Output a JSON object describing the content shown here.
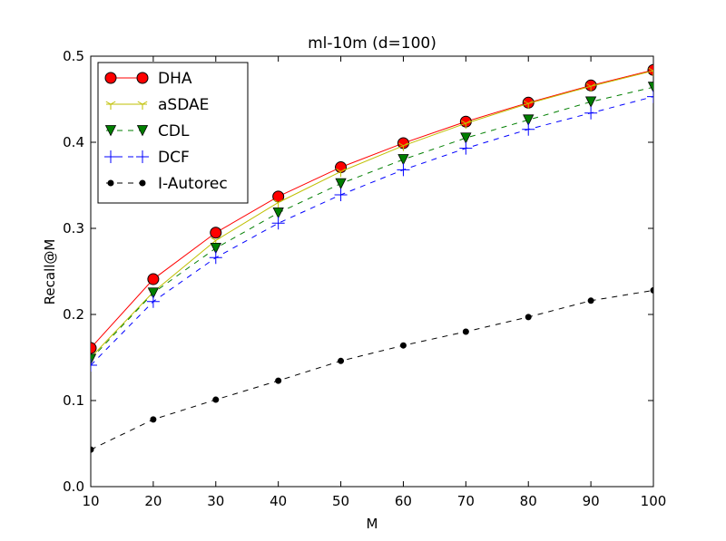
{
  "chart_data": {
    "type": "line",
    "title": "ml-10m (d=100)",
    "xlabel": "M",
    "ylabel": "Recall@M",
    "xlim": [
      10,
      100
    ],
    "ylim": [
      0.0,
      0.5
    ],
    "x": [
      10,
      20,
      30,
      40,
      50,
      60,
      70,
      80,
      90,
      100
    ],
    "xticks": [
      "10",
      "20",
      "30",
      "40",
      "50",
      "60",
      "70",
      "80",
      "90",
      "100"
    ],
    "yticks": [
      "0.0",
      "0.1",
      "0.2",
      "0.3",
      "0.4",
      "0.5"
    ],
    "grid": false,
    "legend_position": "top-left",
    "series": [
      {
        "name": "DHA",
        "color": "#ff0000",
        "marker": "circle",
        "dash": "solid",
        "values": [
          0.161,
          0.241,
          0.295,
          0.337,
          0.371,
          0.399,
          0.424,
          0.446,
          0.466,
          0.484
        ]
      },
      {
        "name": "aSDAE",
        "color": "#bfbf00",
        "marker": "tri-down",
        "dash": "solid",
        "values": [
          0.15,
          0.226,
          0.286,
          0.33,
          0.366,
          0.396,
          0.422,
          0.445,
          0.465,
          0.483
        ]
      },
      {
        "name": "CDL",
        "color": "#007f00",
        "marker": "triangle-down",
        "dash": "dashed",
        "values": [
          0.148,
          0.225,
          0.277,
          0.318,
          0.352,
          0.38,
          0.405,
          0.426,
          0.447,
          0.464
        ]
      },
      {
        "name": "DCF",
        "color": "#0000ff",
        "marker": "plus",
        "dash": "dashed",
        "values": [
          0.141,
          0.215,
          0.266,
          0.306,
          0.339,
          0.368,
          0.393,
          0.415,
          0.434,
          0.453
        ]
      },
      {
        "name": "I-Autorec",
        "color": "#000000",
        "marker": "dot",
        "dash": "dashed",
        "values": [
          0.043,
          0.078,
          0.101,
          0.123,
          0.146,
          0.164,
          0.18,
          0.197,
          0.216,
          0.228
        ]
      }
    ]
  }
}
